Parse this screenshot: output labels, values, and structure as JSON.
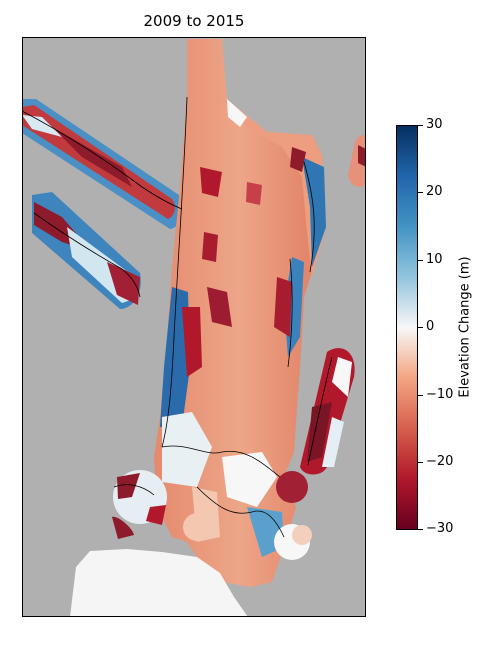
{
  "chart_data": {
    "type": "heatmap",
    "title": "2009 to 2015",
    "xlabel": "",
    "ylabel": "",
    "colorbar": {
      "label": "Elevation Change (m)",
      "colormap": "RdBu",
      "vmin": -30,
      "vmax": 30,
      "ticks": [
        30,
        20,
        10,
        0,
        -10,
        -20,
        -30
      ],
      "tick_labels": [
        "30",
        "20",
        "10",
        "0",
        "−10",
        "−20",
        "−30"
      ]
    },
    "background_color": "#b0b0b0",
    "nodata_color": "#f5f5f5",
    "contours": true,
    "axis_ticks": false
  }
}
